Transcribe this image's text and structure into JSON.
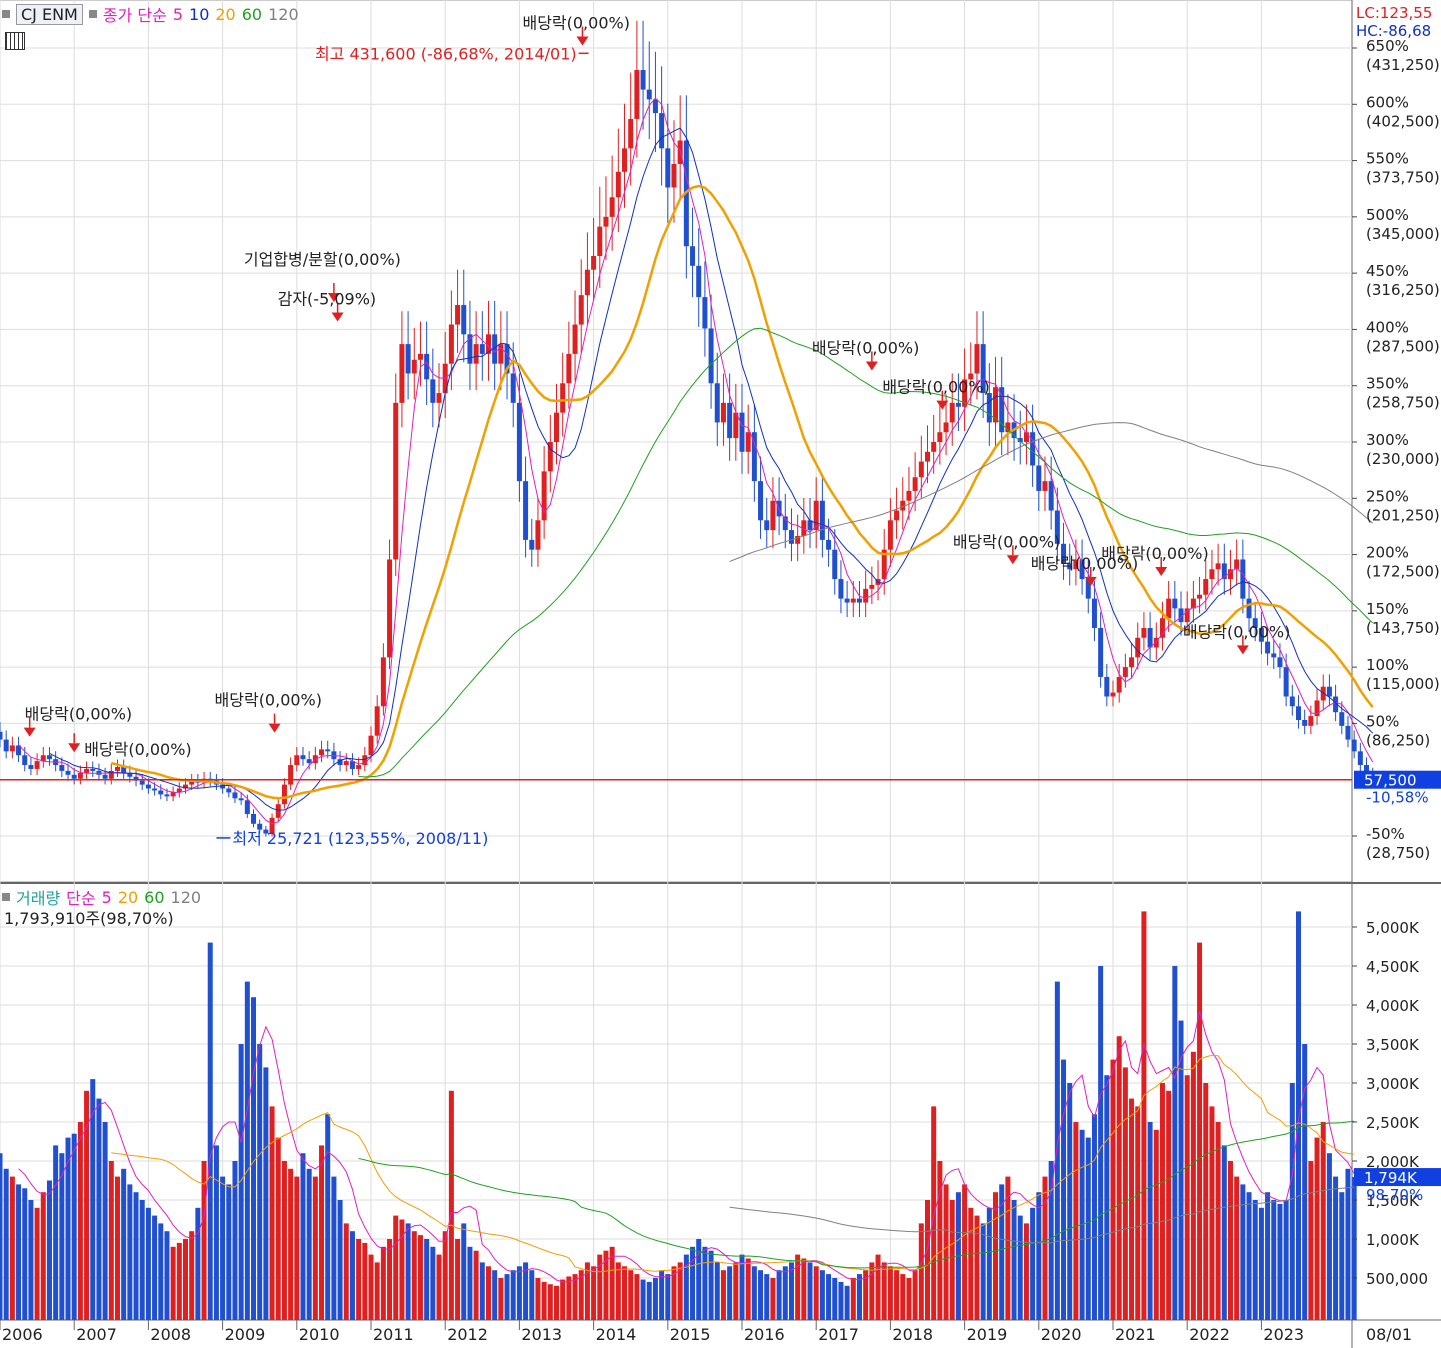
{
  "header": {
    "stock_name": "CJ ENM",
    "price_legend": {
      "type_label": "종가 단순",
      "periods": [
        "5",
        "10",
        "20",
        "60",
        "120"
      ],
      "colors": [
        "#e020c0",
        "#1030c0",
        "#f0a000",
        "#20a020",
        "#808080"
      ]
    },
    "lc_label": "LC:123,55",
    "hc_label": "HC:-86,68"
  },
  "price_axis": {
    "ticks": [
      {
        "pct": "650%",
        "price": "(431,250)",
        "v": 431250
      },
      {
        "pct": "600%",
        "price": "(402,500)",
        "v": 402500
      },
      {
        "pct": "550%",
        "price": "(373,750)",
        "v": 373750
      },
      {
        "pct": "500%",
        "price": "(345,000)",
        "v": 345000
      },
      {
        "pct": "450%",
        "price": "(316,250)",
        "v": 316250
      },
      {
        "pct": "400%",
        "price": "(287,500)",
        "v": 287500
      },
      {
        "pct": "350%",
        "price": "(258,750)",
        "v": 258750
      },
      {
        "pct": "300%",
        "price": "(230,000)",
        "v": 230000
      },
      {
        "pct": "250%",
        "price": "(201,250)",
        "v": 201250
      },
      {
        "pct": "200%",
        "price": "(172,500)",
        "v": 172500
      },
      {
        "pct": "150%",
        "price": "(143,750)",
        "v": 143750
      },
      {
        "pct": "100%",
        "price": "(115,000)",
        "v": 115000
      },
      {
        "pct": "50%",
        "price": "(86,250)",
        "v": 86250
      },
      {
        "pct": "-50%",
        "price": "(28,750)",
        "v": 28750
      }
    ],
    "current_price": "57,500",
    "current_pct": "-10,58%"
  },
  "annotations": {
    "high": "최고 431,600 (-86,68%, 2014/01)",
    "low": "최저 25,721 (123,55%, 2008/11)",
    "events": [
      {
        "text": "배당락(0,00%)",
        "year": 2013.85,
        "v": 431000,
        "label_dx": -60,
        "label_dy": -20
      },
      {
        "text": "기업합병/분할(0,00%)",
        "year": 2010.5,
        "v": 300000,
        "label_dx": -90,
        "label_dy": -40
      },
      {
        "text": "감자(-5,09%)",
        "year": 2010.55,
        "v": 290000,
        "label_dx": -60,
        "label_dy": -20
      },
      {
        "text": "배당락(0,00%)",
        "year": 2009.7,
        "v": 80000,
        "label_dx": -60,
        "label_dy": -30
      },
      {
        "text": "배당락(0,00%)",
        "year": 2007.0,
        "v": 70000,
        "label_dx": 10,
        "label_dy": 0
      },
      {
        "text": "배당락(0,00%)",
        "year": 2006.4,
        "v": 78000,
        "label_dx": -5,
        "label_dy": -20
      },
      {
        "text": "배당락(0,00%)",
        "year": 2017.75,
        "v": 265000,
        "label_dx": -60,
        "label_dy": -20
      },
      {
        "text": "배당락(0,00%)",
        "year": 2018.7,
        "v": 245000,
        "label_dx": -60,
        "label_dy": -20
      },
      {
        "text": "배당락(0,00%)",
        "year": 2019.65,
        "v": 166000,
        "label_dx": -60,
        "label_dy": -20
      },
      {
        "text": "배당락(0,00%)",
        "year": 2020.7,
        "v": 155000,
        "label_dx": -60,
        "label_dy": -20
      },
      {
        "text": "배당락(0,00%)",
        "year": 2021.65,
        "v": 160000,
        "label_dx": -60,
        "label_dy": -20
      },
      {
        "text": "배당락(0,00%)",
        "year": 2022.75,
        "v": 120000,
        "label_dx": -60,
        "label_dy": -20
      }
    ]
  },
  "volume_header": {
    "title": "거래량",
    "type_label": "단순",
    "periods": [
      "5",
      "20",
      "60",
      "120"
    ],
    "value_label": "1,793,910주(98,70%)"
  },
  "volume_axis": {
    "ticks": [
      {
        "label": "5,000K",
        "v": 5000
      },
      {
        "label": "4,500K",
        "v": 4500
      },
      {
        "label": "4,000K",
        "v": 4000
      },
      {
        "label": "3,500K",
        "v": 3500
      },
      {
        "label": "3,000K",
        "v": 3000
      },
      {
        "label": "2,500K",
        "v": 2500
      },
      {
        "label": "2,000K",
        "v": 2000
      },
      {
        "label": "1,500K",
        "v": 1500
      },
      {
        "label": "1,000K",
        "v": 1000
      },
      {
        "label": "500,000",
        "v": 500
      }
    ],
    "current_vol": "1,794K",
    "current_pct": "98,70%"
  },
  "x_axis": {
    "years": [
      "2006",
      "2007",
      "2008",
      "2009",
      "2010",
      "2011",
      "2012",
      "2013",
      "2014",
      "2015",
      "2016",
      "2017",
      "2018",
      "2019",
      "2020",
      "2021",
      "2022",
      "2023"
    ],
    "right_label": "08/01"
  },
  "chart_data": {
    "type": "candlestick-monthly",
    "price_unit": "KRW",
    "start": "2005-12",
    "closes": [
      82000,
      78000,
      72000,
      75000,
      70000,
      65000,
      63000,
      67000,
      70000,
      68000,
      65000,
      62000,
      60000,
      58000,
      61000,
      63000,
      62000,
      60000,
      58000,
      62000,
      64000,
      61000,
      59000,
      57000,
      55000,
      53000,
      52000,
      50000,
      49000,
      51000,
      53000,
      55000,
      57000,
      56000,
      58000,
      57000,
      55000,
      53000,
      51000,
      48000,
      47000,
      40000,
      35000,
      32000,
      30000,
      38000,
      45000,
      55000,
      65000,
      70000,
      68000,
      66000,
      70000,
      73000,
      72000,
      68000,
      65000,
      67000,
      63000,
      65000,
      70000,
      80000,
      95000,
      120000,
      170000,
      250000,
      280000,
      265000,
      272000,
      275000,
      262000,
      250000,
      255000,
      270000,
      290000,
      300000,
      285000,
      270000,
      280000,
      275000,
      285000,
      270000,
      280000,
      265000,
      250000,
      210000,
      180000,
      175000,
      190000,
      215000,
      230000,
      245000,
      260000,
      275000,
      290000,
      305000,
      318000,
      325000,
      340000,
      345000,
      355000,
      368000,
      380000,
      395000,
      420000,
      410000,
      405000,
      398000,
      380000,
      360000,
      372000,
      384000,
      330000,
      320000,
      304000,
      288000,
      260000,
      240000,
      250000,
      232000,
      245000,
      225000,
      235000,
      210000,
      190000,
      185000,
      200000,
      192000,
      185000,
      178000,
      182000,
      190000,
      185000,
      200000,
      180000,
      175000,
      160000,
      150000,
      148000,
      150000,
      148000,
      155000,
      157000,
      160000,
      175000,
      190000,
      195000,
      200000,
      205000,
      212000,
      220000,
      225000,
      230000,
      235000,
      240000,
      250000,
      248000,
      262000,
      265000,
      280000,
      255000,
      240000,
      258000,
      235000,
      240000,
      232000,
      230000,
      235000,
      218000,
      205000,
      210000,
      195000,
      178000,
      168000,
      165000,
      170000,
      160000,
      150000,
      135000,
      110000,
      100000,
      102000,
      110000,
      115000,
      120000,
      130000,
      135000,
      125000,
      130000,
      140000,
      150000,
      145000,
      138000,
      145000,
      150000,
      152000,
      160000,
      165000,
      168000,
      160000,
      165000,
      170000,
      150000,
      140000,
      135000,
      128000,
      122000,
      120000,
      115000,
      100000,
      95000,
      88000,
      85000,
      90000,
      98000,
      105000,
      100000,
      92000,
      85000,
      78000,
      72000,
      65000,
      60000,
      57500
    ],
    "volumes_k": [
      2000,
      2100,
      1900,
      1800,
      1700,
      1650,
      1500,
      1400,
      1600,
      1750,
      2200,
      2100,
      2300,
      2350,
      2500,
      2900,
      3050,
      2800,
      2500,
      2000,
      1800,
      1900,
      1700,
      1600,
      1500,
      1400,
      1300,
      1200,
      1100,
      900,
      950,
      1000,
      1100,
      1400,
      2000,
      4800,
      2200,
      1800,
      1700,
      2000,
      3500,
      4300,
      4100,
      3500,
      3200,
      2700,
      2300,
      2000,
      1900,
      1800,
      2100,
      1900,
      1800,
      2200,
      2600,
      1800,
      1500,
      1200,
      1100,
      1000,
      950,
      800,
      700,
      900,
      1000,
      1300,
      1250,
      1200,
      1100,
      1050,
      1000,
      900,
      800,
      1100,
      2900,
      1000,
      1200,
      900,
      850,
      700,
      650,
      600,
      500,
      550,
      600,
      650,
      700,
      600,
      500,
      450,
      420,
      400,
      480,
      520,
      550,
      600,
      700,
      650,
      800,
      850,
      900,
      700,
      650,
      600,
      550,
      480,
      450,
      500,
      600,
      550,
      650,
      700,
      800,
      900,
      1000,
      900,
      850,
      700,
      600,
      650,
      700,
      800,
      750,
      650,
      600,
      550,
      500,
      600,
      650,
      700,
      800,
      750,
      700,
      650,
      600,
      550,
      500,
      450,
      400,
      500,
      550,
      600,
      700,
      800,
      700,
      650,
      600,
      550,
      500,
      600,
      1200,
      1500,
      2700,
      2000,
      1700,
      1500,
      1600,
      1700,
      1400,
      1300,
      1200,
      1400,
      1600,
      1700,
      1800,
      1500,
      1300,
      1200,
      1400,
      1600,
      1800,
      2000,
      4300,
      3300,
      3000,
      2500,
      2400,
      2300,
      2600,
      4500,
      3100,
      3300,
      3600,
      3200,
      2800,
      2700,
      5200,
      2500,
      2400,
      3000,
      2900,
      4500,
      3800,
      3100,
      3400,
      4800,
      3000,
      2700,
      2500,
      2200,
      2000,
      1800,
      1700,
      1600,
      1500,
      1400,
      1600,
      1500,
      1450,
      1500,
      3000,
      5200,
      3500,
      2000,
      2300,
      2500,
      2100,
      1800,
      1600,
      1900,
      1794
    ]
  }
}
